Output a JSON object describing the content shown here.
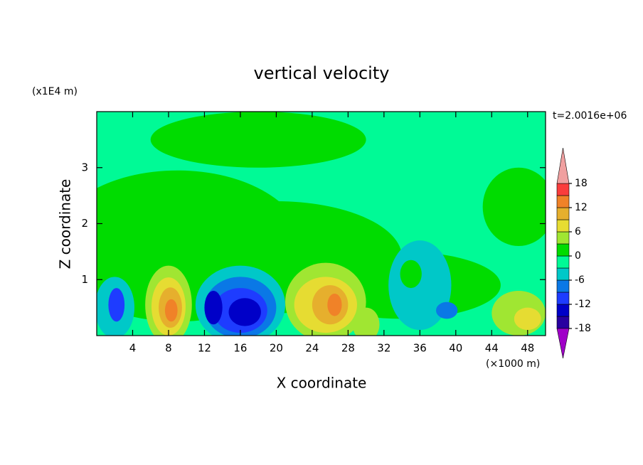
{
  "chart_data": {
    "type": "contour",
    "title": "vertical velocity",
    "y_unit": "(x1E4 m)",
    "x_unit": "(×1000 m)",
    "time_label": "t=2.0016e+06",
    "x_label": "X coordinate",
    "y_label": "Z coordinate",
    "xlim": [
      0,
      50
    ],
    "xticks": [
      4,
      8,
      12,
      16,
      20,
      24,
      28,
      32,
      36,
      40,
      44,
      48
    ],
    "ylim": [
      0,
      4
    ],
    "yticks": [
      1,
      2,
      3
    ],
    "levels": [
      -18,
      -15,
      -12,
      -9,
      -6,
      -3,
      0,
      3,
      6,
      9,
      12,
      15,
      18
    ],
    "colors": [
      "#a000c8",
      "#2800a0",
      "#0000c8",
      "#1e3cff",
      "#0a78e6",
      "#00c8c8",
      "#00fa96",
      "#00dc00",
      "#a0e632",
      "#e6dc32",
      "#e6af2d",
      "#f08228",
      "#fa3c3c",
      "#f0a0a0"
    ],
    "colorbar_ticks": [
      18,
      12,
      6,
      0,
      -6,
      -12,
      -18
    ],
    "field": [
      {
        "x": 25,
        "z": 2,
        "rx": 40,
        "rz": 4,
        "value": -1
      },
      {
        "x": 18,
        "z": 3.5,
        "rx": 12,
        "rz": 0.5,
        "value": 1
      },
      {
        "x": 9,
        "z": 1.6,
        "rx": 14,
        "rz": 1.35,
        "value": 1
      },
      {
        "x": 20,
        "z": 1.4,
        "rx": 14,
        "rz": 1.0,
        "value": 1
      },
      {
        "x": 34,
        "z": 0.9,
        "rx": 11,
        "rz": 0.6,
        "value": 1
      },
      {
        "x": 47,
        "z": 2.3,
        "rx": 4,
        "rz": 0.7,
        "value": 1
      },
      {
        "x": 36,
        "z": 0.9,
        "rx": 3.5,
        "rz": 0.8,
        "value": -4
      },
      {
        "x": 39,
        "z": 0.45,
        "rx": 1.2,
        "rz": 0.15,
        "value": -7
      },
      {
        "x": 35,
        "z": 1.1,
        "rx": 1.2,
        "rz": 0.25,
        "value": 1
      },
      {
        "x": 2,
        "z": 0.5,
        "rx": 2.2,
        "rz": 0.55,
        "value": -4
      },
      {
        "x": 2.2,
        "z": 0.55,
        "rx": 0.9,
        "rz": 0.3,
        "value": -10
      },
      {
        "x": 8,
        "z": 0.55,
        "rx": 2.6,
        "rz": 0.7,
        "value": 4
      },
      {
        "x": 8,
        "z": 0.52,
        "rx": 1.9,
        "rz": 0.52,
        "value": 7
      },
      {
        "x": 8.2,
        "z": 0.5,
        "rx": 1.3,
        "rz": 0.36,
        "value": 10
      },
      {
        "x": 8.3,
        "z": 0.45,
        "rx": 0.7,
        "rz": 0.2,
        "value": 13
      },
      {
        "x": 16,
        "z": 0.55,
        "rx": 5,
        "rz": 0.7,
        "value": -4
      },
      {
        "x": 16,
        "z": 0.5,
        "rx": 4,
        "rz": 0.55,
        "value": -7
      },
      {
        "x": 16,
        "z": 0.45,
        "rx": 3,
        "rz": 0.4,
        "value": -10
      },
      {
        "x": 16.5,
        "z": 0.42,
        "rx": 1.8,
        "rz": 0.25,
        "value": -13
      },
      {
        "x": 13,
        "z": 0.5,
        "rx": 1,
        "rz": 0.3,
        "value": -13
      },
      {
        "x": 25.5,
        "z": 0.6,
        "rx": 4.5,
        "rz": 0.7,
        "value": 4
      },
      {
        "x": 25.5,
        "z": 0.55,
        "rx": 3.5,
        "rz": 0.5,
        "value": 7
      },
      {
        "x": 26,
        "z": 0.55,
        "rx": 2,
        "rz": 0.35,
        "value": 10
      },
      {
        "x": 26.5,
        "z": 0.55,
        "rx": 0.8,
        "rz": 0.2,
        "value": 13
      },
      {
        "x": 30,
        "z": 0.2,
        "rx": 1.5,
        "rz": 0.3,
        "value": 4
      },
      {
        "x": 47,
        "z": 0.4,
        "rx": 3,
        "rz": 0.4,
        "value": 4
      },
      {
        "x": 48,
        "z": 0.3,
        "rx": 1.5,
        "rz": 0.2,
        "value": 7
      }
    ]
  }
}
